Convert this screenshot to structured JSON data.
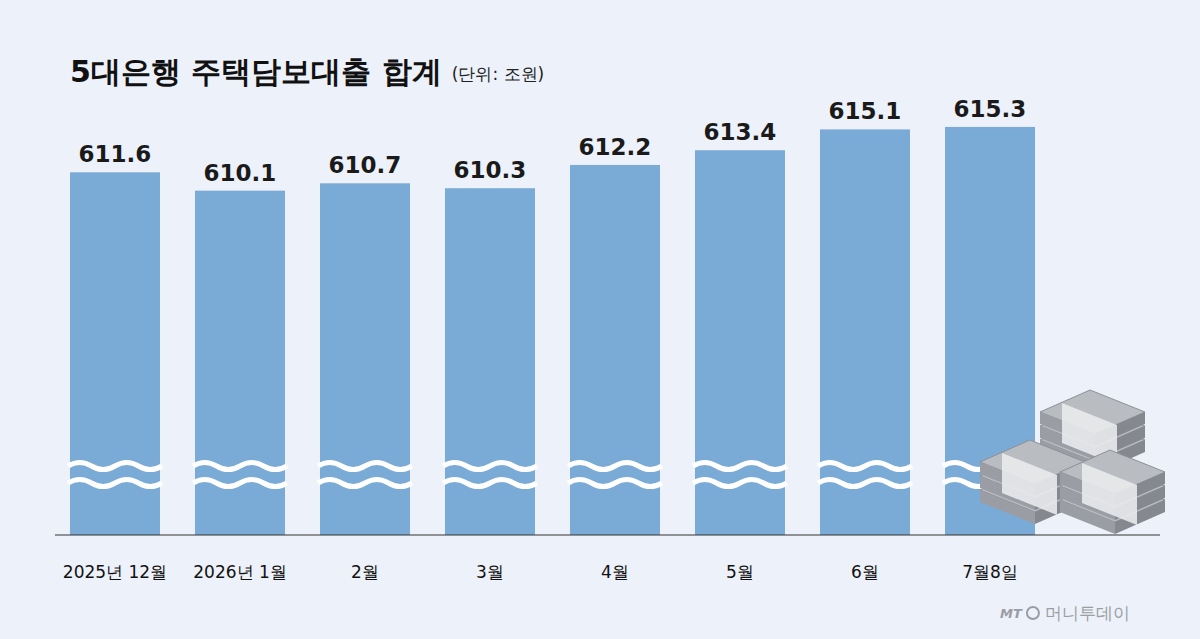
{
  "chart_data": {
    "type": "bar",
    "title": "5대은행 주택담보대출 합계",
    "unit": "(단위: 조원)",
    "categories": [
      "2025년 12월",
      "2026년 1월",
      "2월",
      "3월",
      "4월",
      "5월",
      "6월",
      "7월8일"
    ],
    "values": [
      611.6,
      610.1,
      610.7,
      610.3,
      612.2,
      613.4,
      615.1,
      615.3
    ],
    "color": "#7aaad6",
    "ylim": [
      582,
      617.5
    ],
    "tick_labels": "x",
    "data_labels": true,
    "grid": false,
    "source_logo": "MT",
    "source": "머니투데이"
  }
}
